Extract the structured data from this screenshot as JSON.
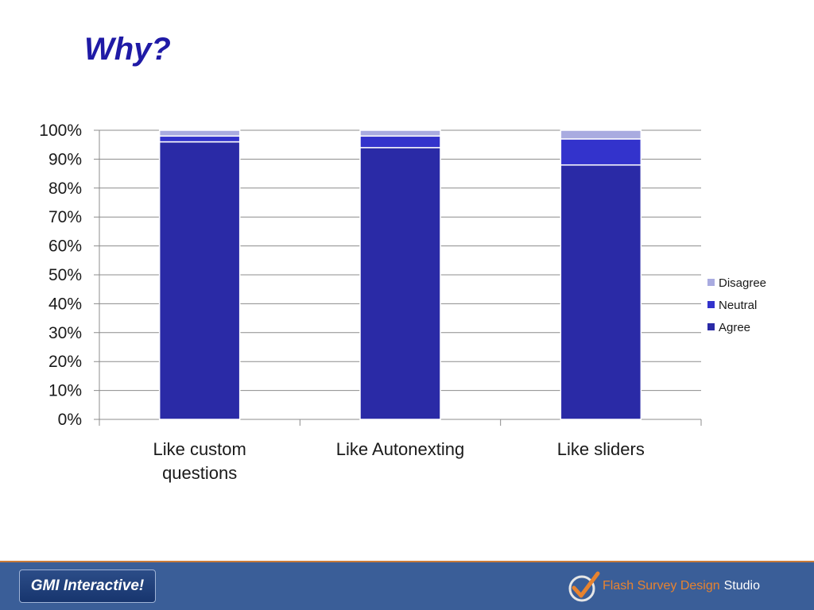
{
  "slide": {
    "title": "Why?"
  },
  "chart_data": {
    "type": "bar",
    "stacked": true,
    "categories": [
      "Like custom questions",
      "Like Autonexting",
      "Like sliders"
    ],
    "series": [
      {
        "name": "Agree",
        "values": [
          96,
          94,
          88
        ],
        "color": "#2a2aa6"
      },
      {
        "name": "Neutral",
        "values": [
          2,
          4,
          9
        ],
        "color": "#3333cc"
      },
      {
        "name": "Disagree",
        "values": [
          2,
          2,
          3
        ],
        "color": "#a9abe0"
      }
    ],
    "legend_order": [
      "Disagree",
      "Neutral",
      "Agree"
    ],
    "yticks": [
      "0%",
      "10%",
      "20%",
      "30%",
      "40%",
      "50%",
      "60%",
      "70%",
      "80%",
      "90%",
      "100%"
    ],
    "ylim": [
      0,
      100
    ],
    "grid": true,
    "legend_position": "right"
  },
  "footer": {
    "logo_text": "GMI Interactive!",
    "brand_part1": "Flash Survey Design",
    "brand_part2": "Studio",
    "background": "#3a5e98",
    "accent": "#e8832f"
  }
}
